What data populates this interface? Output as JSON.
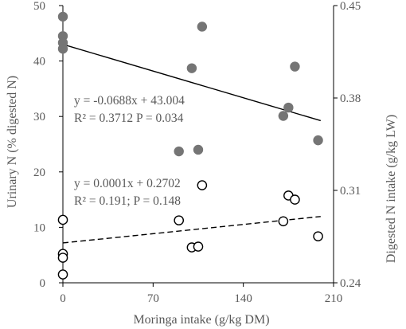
{
  "chart_data": {
    "type": "scatter",
    "title": "",
    "xlabel": "Moringa intake (g/kg DM)",
    "ylabel_left": "Urinary N (% digested N)",
    "ylabel_right": "Digested N intake (g/kg LW)",
    "x_ticks": [
      "0",
      "70",
      "140",
      "210"
    ],
    "y_left_ticks": [
      "0",
      "10",
      "20",
      "30",
      "40",
      "50"
    ],
    "y_right_ticks": [
      "0.24",
      "0.31",
      "0.38",
      "0.45"
    ],
    "xlim": [
      0,
      210
    ],
    "ylim_left": [
      0,
      50
    ],
    "ylim_right": [
      0.24,
      0.45
    ],
    "grid": false,
    "legend": "none",
    "series": [
      {
        "axis": "left",
        "marker": "filled-circle",
        "color": "#757575",
        "points": [
          [
            0,
            48
          ],
          [
            0,
            44.5
          ],
          [
            0,
            43.3
          ],
          [
            0,
            42.2
          ],
          [
            90,
            23.7
          ],
          [
            100,
            38.7
          ],
          [
            105,
            24.0
          ],
          [
            108,
            46.2
          ],
          [
            171,
            30.1
          ],
          [
            175,
            31.6
          ],
          [
            180,
            39.0
          ],
          [
            198,
            25.7
          ]
        ],
        "trendline": {
          "style": "solid",
          "color": "#000000",
          "x_range": [
            0,
            200
          ],
          "equation": "y = -0.0688x + 43.004",
          "stats": "R² = 0.3712 P = 0.034"
        }
      },
      {
        "axis": "right",
        "marker": "open-circle",
        "color": "#000000",
        "points": [
          [
            0,
            0.2877
          ],
          [
            0,
            0.2619
          ],
          [
            0,
            0.259
          ],
          [
            0,
            0.2463
          ],
          [
            90,
            0.2873
          ],
          [
            100,
            0.2668
          ],
          [
            105,
            0.2674
          ],
          [
            108,
            0.3139
          ],
          [
            171,
            0.2866
          ],
          [
            175,
            0.3061
          ],
          [
            180,
            0.303
          ],
          [
            198,
            0.2752
          ]
        ],
        "trendline": {
          "style": "dashed",
          "color": "#000000",
          "x_range": [
            0,
            200
          ],
          "equation": "y = 0.0001x + 0.2702",
          "stats": "R² = 0.191; P = 0.148"
        }
      }
    ]
  }
}
